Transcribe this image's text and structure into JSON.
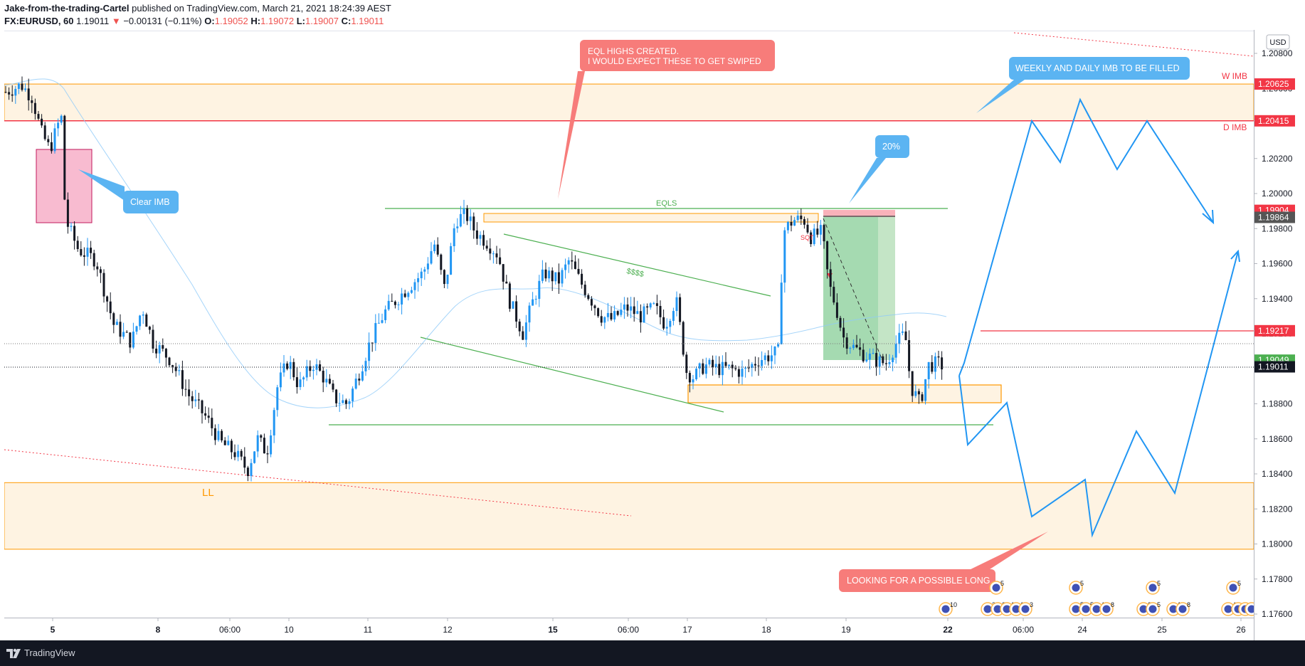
{
  "header": {
    "author": "Jake-from-the-trading-Cartel",
    "published": "published on TradingView.com, March 21, 2021 18:24:39 AEST",
    "symbol": "FX:EURUSD, 60",
    "last": "1.19011",
    "change": "−0.00131 (−0.11%)",
    "o_label": "O:",
    "o_value": "1.19052",
    "h_label": "H:",
    "h_value": "1.19072",
    "l_label": "L:",
    "l_value": "1.19007",
    "c_label": "C:",
    "c_value": "1.19011"
  },
  "footer": {
    "brand": "TradingView"
  },
  "chart_data": {
    "type": "candlestick",
    "symbol": "EURUSD",
    "currency_label": "USD",
    "ylim": [
      1.1755,
      1.2105
    ],
    "y_ticks": [
      1.176,
      1.178,
      1.18,
      1.182,
      1.184,
      1.186,
      1.188,
      1.19,
      1.192,
      1.194,
      1.196,
      1.198,
      1.2,
      1.202,
      1.204,
      1.206,
      1.208
    ],
    "x_tick_labels": [
      "5",
      "8",
      "06:00",
      "10",
      "11",
      "12",
      "15",
      "06:00",
      "17",
      "18",
      "19",
      "22",
      "06:00",
      "24",
      "25",
      "26"
    ],
    "bold_x_tick_labels": [
      "5",
      "8",
      "15",
      "22"
    ],
    "price_labels": [
      {
        "value": 1.20625,
        "text": "1.20625",
        "color": "#f23645"
      },
      {
        "value": 1.20415,
        "text": "1.20415",
        "color": "#f23645"
      },
      {
        "value": 1.19904,
        "text": "1.19904",
        "color": "#f23645"
      },
      {
        "value": 1.19864,
        "text": "1.19864",
        "color": "#555555"
      },
      {
        "value": 1.19217,
        "text": "1.19217",
        "color": "#f23645"
      },
      {
        "value": 1.19049,
        "text": "1.19049",
        "color": "#4caf50"
      },
      {
        "value": 1.19011,
        "text": "1.19011",
        "color": "#131722"
      }
    ],
    "zones": [
      {
        "name": "W IMB",
        "from": 1.20625,
        "to": 1.20415
      },
      {
        "name": "D IMB",
        "from": 1.20415,
        "to": 1.204
      },
      {
        "name": "lower-zone",
        "from": 1.1835,
        "to": 1.1797
      }
    ],
    "horizontal_levels": [
      {
        "name": "EQLS",
        "value": 1.1991
      },
      {
        "name": "range-low",
        "value": 1.1869
      },
      {
        "name": "target",
        "value": 1.19217
      }
    ],
    "annotations": [
      {
        "text": "EQL HIGHS CREATED.\nI WOULD EXPECT THESE TO GET SWIPED",
        "style": "red-callout"
      },
      {
        "text": "WEEKLY AND DAILY IMB TO BE FILLED",
        "style": "blue-callout"
      },
      {
        "text": "Clear IMB",
        "style": "blue-callout"
      },
      {
        "text": "20%",
        "style": "blue-callout"
      },
      {
        "text": "LOOKING FOR A POSSIBLE LONG",
        "style": "red-callout"
      },
      {
        "text": "EQLS",
        "style": "green-label"
      },
      {
        "text": "$$$$",
        "style": "green-label"
      },
      {
        "text": "LL",
        "style": "orange-label"
      },
      {
        "text": "W IMB",
        "style": "red-label"
      },
      {
        "text": "D IMB",
        "style": "red-label"
      },
      {
        "text": "SQT",
        "style": "red-label"
      }
    ],
    "event_badges": [
      "5",
      "10",
      "2",
      "2",
      "1",
      "1",
      "3",
      "5",
      "5",
      "5",
      "4",
      "8",
      "5",
      "3",
      "5",
      "1",
      "8",
      "5",
      "4",
      "1",
      "4",
      "2"
    ],
    "colors": {
      "up": "#2196f3",
      "down": "#131722",
      "zone": "#fef3e2",
      "zone_border": "#ff9800",
      "path": "#2196f3"
    }
  }
}
